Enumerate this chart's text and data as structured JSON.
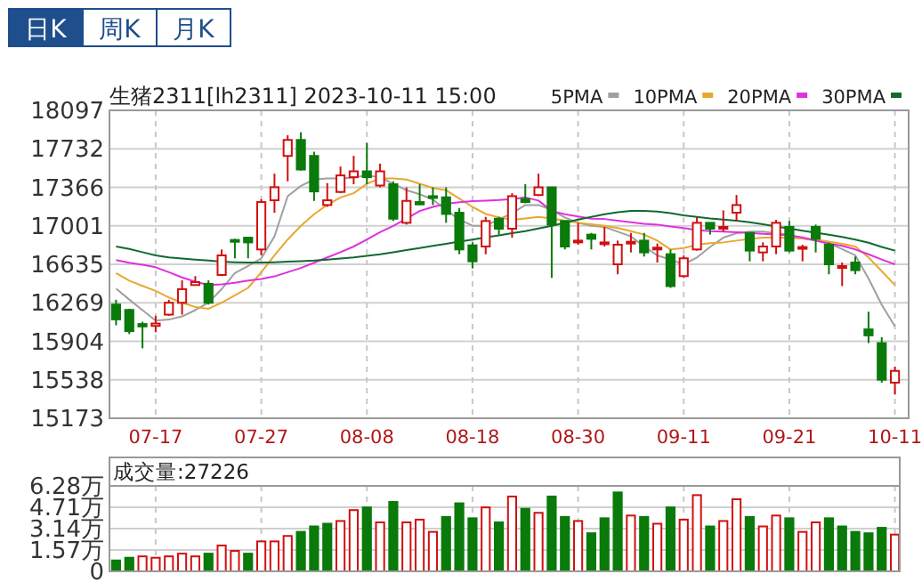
{
  "chart_data": [
    {
      "type": "candlestick",
      "title": "生猪2311[lh2311] 2023-10-11 15:00",
      "annotations": [
        "日K",
        "周K",
        "月K"
      ],
      "categories": [
        null,
        null,
        null,
        "07-17",
        null,
        null,
        null,
        null,
        null,
        null,
        null,
        "07-27",
        null,
        null,
        null,
        null,
        null,
        null,
        null,
        "08-08",
        null,
        null,
        null,
        null,
        null,
        null,
        null,
        "08-18",
        null,
        null,
        null,
        null,
        null,
        null,
        null,
        "08-30",
        null,
        null,
        null,
        null,
        null,
        null,
        null,
        "09-11",
        null,
        null,
        null,
        null,
        null,
        null,
        null,
        "09-21",
        null,
        null,
        null,
        null,
        null,
        null,
        null,
        "10-11"
      ],
      "ohlc": [
        [
          16253,
          16298,
          16056,
          16112
        ],
        [
          16202,
          16213,
          15972,
          16000
        ],
        [
          16068,
          16090,
          15837,
          16045
        ],
        [
          16050,
          16146,
          15990,
          16073
        ],
        [
          16157,
          16298,
          16146,
          16270
        ],
        [
          16270,
          16483,
          16157,
          16399
        ],
        [
          16438,
          16523,
          16438,
          16466
        ],
        [
          16450,
          16483,
          16253,
          16270
        ],
        [
          16534,
          16776,
          16523,
          16720
        ],
        [
          16866,
          16877,
          16692,
          16849
        ],
        [
          16888,
          16888,
          16692,
          16843
        ],
        [
          16776,
          17254,
          16720,
          17226
        ],
        [
          17243,
          17496,
          17125,
          17367
        ],
        [
          17664,
          17861,
          17423,
          17816
        ],
        [
          17816,
          17889,
          17524,
          17535
        ],
        [
          17664,
          17704,
          17237,
          17327
        ],
        [
          17198,
          17406,
          17181,
          17243
        ],
        [
          17322,
          17563,
          17311,
          17479
        ],
        [
          17462,
          17665,
          17395,
          17518
        ],
        [
          17518,
          17788,
          17395,
          17462
        ],
        [
          17383,
          17591,
          17366,
          17518
        ],
        [
          17395,
          17423,
          17046,
          17068
        ],
        [
          17029,
          17366,
          17012,
          17237
        ],
        [
          17226,
          17395,
          17198,
          17204
        ],
        [
          17282,
          17366,
          17198,
          17265
        ],
        [
          17271,
          17366,
          17029,
          17113
        ],
        [
          17125,
          17170,
          16731,
          16776
        ],
        [
          16815,
          16843,
          16596,
          16663
        ],
        [
          16804,
          17085,
          16731,
          17046
        ],
        [
          17068,
          17085,
          16917,
          16973
        ],
        [
          16973,
          17310,
          16888,
          17282
        ],
        [
          17254,
          17395,
          17215,
          17226
        ],
        [
          17293,
          17496,
          17282,
          17366
        ],
        [
          17366,
          17366,
          16506,
          17012
        ],
        [
          17046,
          17046,
          16776,
          16804
        ],
        [
          16843,
          17029,
          16821,
          16860
        ],
        [
          16917,
          16933,
          16776,
          16877
        ],
        [
          16832,
          16990,
          16804,
          16843
        ],
        [
          16635,
          16860,
          16540,
          16821
        ],
        [
          16832,
          16933,
          16748,
          16849
        ],
        [
          16860,
          16933,
          16709,
          16748
        ],
        [
          16776,
          16832,
          16652,
          16793
        ],
        [
          16731,
          16776,
          16411,
          16428
        ],
        [
          16523,
          16720,
          16506,
          16692
        ],
        [
          16776,
          17085,
          16765,
          17029
        ],
        [
          17029,
          17029,
          16917,
          16973
        ],
        [
          16978,
          17147,
          16945,
          16990
        ],
        [
          17125,
          17293,
          17040,
          17198
        ],
        [
          16933,
          16933,
          16663,
          16765
        ],
        [
          16748,
          16843,
          16663,
          16804
        ],
        [
          16804,
          17057,
          16731,
          17029
        ],
        [
          16990,
          17046,
          16748,
          16765
        ],
        [
          16787,
          16821,
          16663,
          16799
        ],
        [
          16990,
          17012,
          16748,
          16877
        ],
        [
          16821,
          16843,
          16540,
          16635
        ],
        [
          16601,
          16652,
          16428,
          16618
        ],
        [
          16652,
          16709,
          16540,
          16579
        ],
        [
          16017,
          16185,
          15887,
          15960
        ],
        [
          15887,
          15943,
          15511,
          15539
        ],
        [
          15511,
          15663,
          15398,
          15623
        ]
      ],
      "series": [
        {
          "name": "5PMA",
          "type": "line",
          "color": "#a0a0a0",
          "values": [
            16405,
            16300,
            16200,
            16101,
            16110,
            16140,
            16200,
            16270,
            16400,
            16551,
            16620,
            16692,
            16900,
            17282,
            17380,
            17440,
            17451,
            17451,
            17460,
            17480,
            17460,
            17400,
            17338,
            17300,
            17250,
            17150,
            17060,
            17001,
            17001,
            17060,
            17120,
            17198,
            17198,
            17150,
            17080,
            17029,
            17001,
            16990,
            16945,
            16900,
            16804,
            16720,
            16680,
            16635,
            16700,
            16800,
            16888,
            16930,
            16945,
            16945,
            16930,
            16917,
            16880,
            16860,
            16832,
            16780,
            16720,
            16500,
            16250,
            16045
          ]
        },
        {
          "name": "10PMA",
          "type": "line",
          "color": "#e8a830",
          "values": [
            16551,
            16480,
            16430,
            16382,
            16320,
            16270,
            16230,
            16213,
            16270,
            16340,
            16411,
            16560,
            16720,
            16870,
            17001,
            17110,
            17200,
            17270,
            17310,
            17400,
            17451,
            17451,
            17440,
            17400,
            17360,
            17338,
            17260,
            17180,
            17113,
            17080,
            17057,
            17070,
            17085,
            17070,
            17050,
            17029,
            17015,
            17001,
            16980,
            16950,
            16917,
            16860,
            16776,
            16790,
            16820,
            16835,
            16843,
            16860,
            16875,
            16888,
            16890,
            16885,
            16880,
            16870,
            16850,
            16830,
            16804,
            16700,
            16570,
            16438
          ]
        },
        {
          "name": "20PMA",
          "type": "line",
          "color": "#e030e0",
          "values": [
            16675,
            16650,
            16630,
            16607,
            16560,
            16510,
            16470,
            16438,
            16445,
            16460,
            16480,
            16495,
            16520,
            16560,
            16600,
            16650,
            16700,
            16750,
            16804,
            16870,
            16940,
            17000,
            17070,
            17141,
            17180,
            17210,
            17225,
            17235,
            17240,
            17245,
            17254,
            17270,
            17240,
            17141,
            17110,
            17090,
            17068,
            17065,
            17050,
            17035,
            17020,
            17012,
            16995,
            16980,
            16960,
            16950,
            16945,
            16940,
            16932,
            16925,
            16918,
            16910,
            16890,
            16860,
            16832,
            16810,
            16776,
            16730,
            16680,
            16635
          ]
        },
        {
          "name": "30PMA",
          "type": "line",
          "color": "#106a30",
          "values": [
            16804,
            16780,
            16750,
            16720,
            16700,
            16690,
            16680,
            16670,
            16660,
            16655,
            16652,
            16652,
            16655,
            16660,
            16665,
            16670,
            16680,
            16690,
            16700,
            16715,
            16730,
            16750,
            16770,
            16790,
            16810,
            16830,
            16850,
            16870,
            16890,
            16910,
            16930,
            16950,
            16975,
            17000,
            17030,
            17060,
            17085,
            17110,
            17130,
            17141,
            17141,
            17135,
            17120,
            17100,
            17085,
            17070,
            17060,
            17050,
            17035,
            17015,
            16995,
            16975,
            16955,
            16935,
            16915,
            16895,
            16870,
            16840,
            16800,
            16765
          ]
        }
      ],
      "ylim": [
        15173,
        18097
      ],
      "yticks": [
        15173,
        15538,
        15904,
        16269,
        16635,
        17001,
        17366,
        17732,
        18097
      ],
      "grid": true,
      "legend": "top right"
    },
    {
      "type": "bar",
      "title": "成交量:27226",
      "categories": [
        null,
        null,
        null,
        null,
        null,
        null,
        null,
        null,
        null,
        null,
        null,
        null,
        null,
        null,
        null,
        null,
        null,
        null,
        null,
        null,
        null,
        null,
        null,
        null,
        null,
        null,
        null,
        null,
        null,
        null,
        null,
        null,
        null,
        null,
        null,
        null,
        null,
        null,
        null,
        null,
        null,
        null,
        null,
        null,
        null,
        null,
        null,
        null,
        null,
        null,
        null,
        null,
        null,
        null,
        null,
        null,
        null,
        null,
        null,
        null
      ],
      "values": [
        0.8,
        1.0,
        1.1,
        1.0,
        1.1,
        1.3,
        1.1,
        1.3,
        1.9,
        1.5,
        1.3,
        2.2,
        2.2,
        2.6,
        2.9,
        3.3,
        3.5,
        3.7,
        4.5,
        4.7,
        3.6,
        5.1,
        3.6,
        3.8,
        2.9,
        4.0,
        5.0,
        3.9,
        4.7,
        3.6,
        5.5,
        4.6,
        4.3,
        5.5,
        4.0,
        3.7,
        2.8,
        3.9,
        5.8,
        4.1,
        4.0,
        3.5,
        4.7,
        3.8,
        5.6,
        3.3,
        3.7,
        5.3,
        4.0,
        3.3,
        4.1,
        3.9,
        2.9,
        3.6,
        3.9,
        3.3,
        2.9,
        2.8,
        3.2,
        2.7
      ],
      "colors": [
        "#0a7a0a",
        "#0a7a0a",
        "#d01010",
        "#d01010",
        "#d01010",
        "#d01010",
        "#d01010",
        "#0a7a0a",
        "#d01010",
        "#d01010",
        "#0a7a0a",
        "#d01010",
        "#d01010",
        "#d01010",
        "#0a7a0a",
        "#0a7a0a",
        "#0a7a0a",
        "#d01010",
        "#d01010",
        "#0a7a0a",
        "#d01010",
        "#0a7a0a",
        "#d01010",
        "#d01010",
        "#d01010",
        "#0a7a0a",
        "#0a7a0a",
        "#0a7a0a",
        "#d01010",
        "#0a7a0a",
        "#d01010",
        "#0a7a0a",
        "#d01010",
        "#0a7a0a",
        "#0a7a0a",
        "#d01010",
        "#0a7a0a",
        "#0a7a0a",
        "#0a7a0a",
        "#d01010",
        "#0a7a0a",
        "#d01010",
        "#0a7a0a",
        "#d01010",
        "#d01010",
        "#0a7a0a",
        "#d01010",
        "#d01010",
        "#0a7a0a",
        "#d01010",
        "#d01010",
        "#0a7a0a",
        "#d01010",
        "#d01010",
        "#0a7a0a",
        "#0a7a0a",
        "#0a7a0a",
        "#0a7a0a",
        "#0a7a0a",
        "#d01010"
      ],
      "ylim": [
        0,
        6.28
      ],
      "yticks": [
        0,
        {
          "value": 1.57,
          "label": "1.57万"
        },
        {
          "value": 3.14,
          "label": "3.14万"
        },
        {
          "value": 4.71,
          "label": "4.71万"
        },
        {
          "value": 6.28,
          "label": "6.28万"
        }
      ],
      "grid": true,
      "tick_labels": "y"
    }
  ]
}
